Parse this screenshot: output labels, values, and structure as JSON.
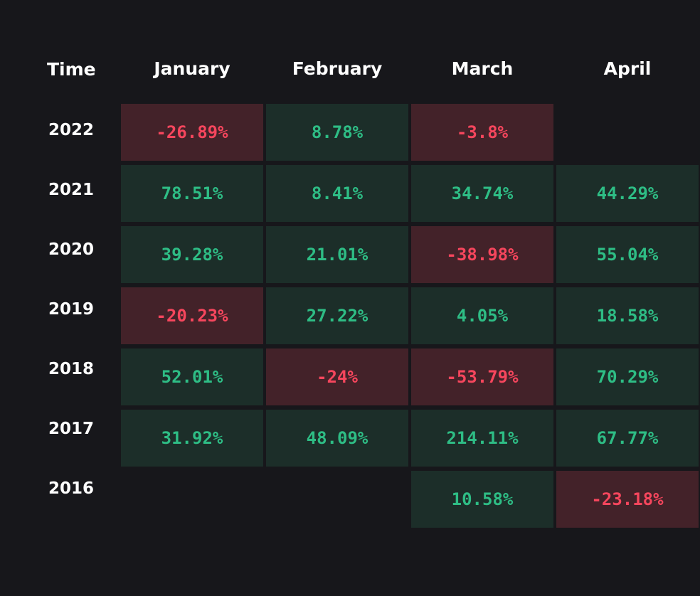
{
  "chart_data": {
    "type": "heatmap",
    "corner_label": "Time",
    "columns": [
      "January",
      "February",
      "March",
      "April"
    ],
    "rows": [
      "2022",
      "2021",
      "2020",
      "2019",
      "2018",
      "2017",
      "2016"
    ],
    "values": [
      [
        "-26.89%",
        "8.78%",
        "-3.8%",
        null
      ],
      [
        "78.51%",
        "8.41%",
        "34.74%",
        "44.29%"
      ],
      [
        "39.28%",
        "21.01%",
        "-38.98%",
        "55.04%"
      ],
      [
        "-20.23%",
        "27.22%",
        "4.05%",
        "18.58%"
      ],
      [
        "52.01%",
        "-24%",
        "-53.79%",
        "70.29%"
      ],
      [
        "31.92%",
        "48.09%",
        "214.11%",
        "67.77%"
      ],
      [
        null,
        null,
        "10.58%",
        "-23.18%"
      ]
    ],
    "unit": "%",
    "colors": {
      "background": "#17171b",
      "header_text": "#ffffff",
      "positive_text": "#2ebd85",
      "positive_fill": "#1c2e29",
      "negative_text": "#f6465d",
      "negative_fill": "#432229"
    }
  }
}
